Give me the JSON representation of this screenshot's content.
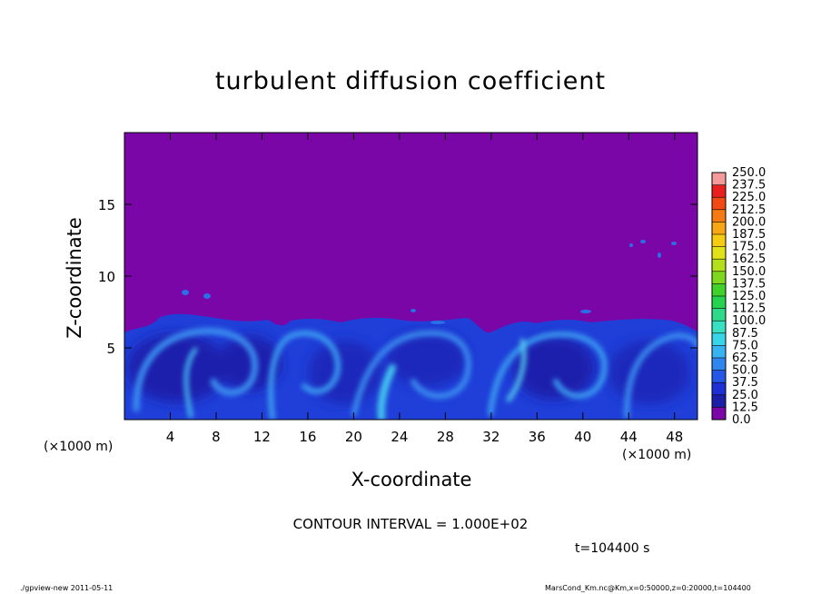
{
  "chart_data": {
    "type": "heatmap",
    "title": "turbulent diffusion coefficient",
    "xlabel": "X-coordinate",
    "ylabel": "Z-coordinate",
    "x_unit_label": "(×1000 m)",
    "x_ticks": [
      4,
      8,
      12,
      16,
      20,
      24,
      28,
      32,
      36,
      40,
      44,
      48
    ],
    "y_ticks": [
      5,
      10,
      15
    ],
    "xlim": [
      0,
      50
    ],
    "ylim": [
      0,
      20
    ],
    "colorbar": {
      "levels": [
        "0.0",
        "12.5",
        "25.0",
        "37.5",
        "50.0",
        "62.5",
        "75.0",
        "87.5",
        "100.0",
        "112.5",
        "125.0",
        "137.5",
        "150.0",
        "162.5",
        "175.0",
        "187.5",
        "200.0",
        "212.5",
        "225.0",
        "237.5",
        "250.0"
      ],
      "colors": [
        "#7a06a8",
        "#1b1fa8",
        "#1f2fd6",
        "#2457e8",
        "#2f86ee",
        "#36b3f0",
        "#38d5e8",
        "#36e0c0",
        "#2fd98a",
        "#26d24e",
        "#40d22a",
        "#7fd81f",
        "#b5de1c",
        "#e2e21a",
        "#f5cc12",
        "#f7a614",
        "#f57a14",
        "#f24a14",
        "#e8201e",
        "#f05a5a",
        "#f59a9a"
      ]
    },
    "background_value": "0.0",
    "turbulent_layer_top_approx": 6.5
  },
  "annotations": {
    "x_unit_left": "(×1000 m)",
    "x_unit_right": "(×1000 m)",
    "contour_interval": "CONTOUR INTERVAL = 1.000E+02",
    "time": "t=104400 s"
  },
  "footer": {
    "left": "./gpview-new   2011-05-11",
    "right": "MarsCond_Km.nc@Km,x=0:50000,z=0:20000,t=104400"
  }
}
